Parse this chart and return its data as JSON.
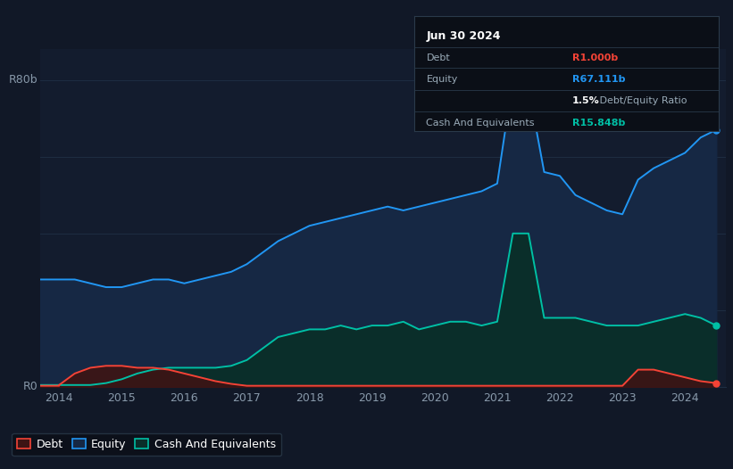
{
  "bg_color": "#111827",
  "chart_bg": "#111827",
  "plot_bg": "#131c2e",
  "grid_color": "#1e2d42",
  "equity_color": "#2196f3",
  "equity_fill": "#162844",
  "debt_color": "#f44336",
  "debt_fill": "#3d1414",
  "cash_color": "#00bfa5",
  "cash_fill": "#0a2e2a",
  "ylabel": "R80b",
  "y0label": "R0",
  "years": [
    2013.7,
    2014.0,
    2014.0,
    2014.25,
    2014.5,
    2014.75,
    2015.0,
    2015.25,
    2015.5,
    2015.75,
    2016.0,
    2016.25,
    2016.5,
    2016.75,
    2017.0,
    2017.25,
    2017.5,
    2017.75,
    2018.0,
    2018.25,
    2018.5,
    2018.75,
    2019.0,
    2019.25,
    2019.5,
    2019.75,
    2020.0,
    2020.25,
    2020.5,
    2020.75,
    2021.0,
    2021.25,
    2021.5,
    2021.75,
    2022.0,
    2022.25,
    2022.5,
    2022.75,
    2023.0,
    2023.25,
    2023.5,
    2023.75,
    2024.0,
    2024.25,
    2024.5
  ],
  "equity": [
    28,
    28,
    28,
    28,
    27,
    26,
    26,
    27,
    28,
    28,
    27,
    28,
    29,
    30,
    32,
    35,
    38,
    40,
    42,
    43,
    44,
    45,
    46,
    47,
    46,
    47,
    48,
    49,
    50,
    51,
    53,
    80,
    78,
    56,
    55,
    50,
    48,
    46,
    45,
    54,
    57,
    59,
    61,
    65,
    67
  ],
  "debt": [
    0.3,
    0.3,
    0.5,
    3.5,
    5,
    5.5,
    5.5,
    5,
    5,
    4.5,
    3.5,
    2.5,
    1.5,
    0.8,
    0.3,
    0.3,
    0.3,
    0.3,
    0.3,
    0.3,
    0.3,
    0.3,
    0.3,
    0.3,
    0.3,
    0.3,
    0.3,
    0.3,
    0.3,
    0.3,
    0.3,
    0.3,
    0.3,
    0.3,
    0.3,
    0.3,
    0.3,
    0.3,
    0.3,
    4.5,
    4.5,
    3.5,
    2.5,
    1.5,
    1.0
  ],
  "cash": [
    0.5,
    0.5,
    0.5,
    0.5,
    0.5,
    1.0,
    2.0,
    3.5,
    4.5,
    5.0,
    5.0,
    5.0,
    5.0,
    5.5,
    7.0,
    10,
    13,
    14,
    15,
    15,
    16,
    15,
    16,
    16,
    17,
    15,
    16,
    17,
    17,
    16,
    17,
    40,
    40,
    18,
    18,
    18,
    17,
    16,
    16,
    16,
    17,
    18,
    19,
    18,
    16
  ],
  "xticks": [
    2014,
    2015,
    2016,
    2017,
    2018,
    2019,
    2020,
    2021,
    2022,
    2023,
    2024
  ],
  "xlim": [
    2013.7,
    2024.65
  ],
  "ylim": [
    0,
    88
  ],
  "ytick_top": 80,
  "legend_labels": [
    "Debt",
    "Equity",
    "Cash And Equivalents"
  ],
  "info_date": "Jun 30 2024",
  "info_rows": [
    {
      "label": "Debt",
      "value": "R1.000b",
      "value_color": "#f44336"
    },
    {
      "label": "Equity",
      "value": "R67.111b",
      "value_color": "#2196f3"
    },
    {
      "label": "",
      "bold": "1.5%",
      "rest": " Debt/Equity Ratio"
    },
    {
      "label": "Cash And Equivalents",
      "value": "R15.848b",
      "value_color": "#00bfa5"
    }
  ]
}
